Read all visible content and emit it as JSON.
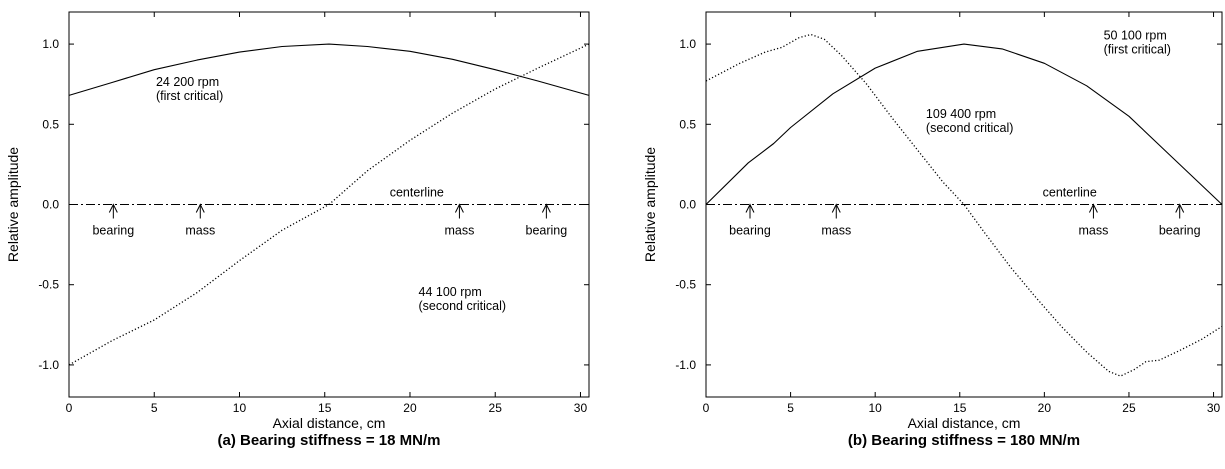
{
  "chart_data": [
    {
      "type": "line",
      "caption": "(a) Bearing stiffness = 18 MN/m",
      "xlabel": "Axial distance, cm",
      "ylabel": "Relative amplitude",
      "xlim": [
        0,
        30.5
      ],
      "ylim": [
        -1.2,
        1.2
      ],
      "xticks": [
        0,
        5,
        10,
        15,
        20,
        25,
        30
      ],
      "yticks": [
        -1.0,
        -0.5,
        0.0,
        0.5,
        1.0
      ],
      "ytick_labels": [
        "-1.0",
        "-0.5",
        "0.0",
        "0.5",
        "1.0"
      ],
      "centerline": {
        "y": 0,
        "label": "centerline",
        "label_x": 20.4
      },
      "markers": [
        {
          "x": 2.6,
          "label": "bearing"
        },
        {
          "x": 7.7,
          "label": "mass"
        },
        {
          "x": 22.9,
          "label": "mass"
        },
        {
          "x": 28.0,
          "label": "bearing"
        }
      ],
      "series": [
        {
          "style": "solid",
          "label_lines": [
            "24 200 rpm",
            "(first critical)"
          ],
          "label_pos": [
            5.1,
            0.74
          ],
          "x": [
            0,
            2.5,
            5,
            7.5,
            10,
            12.5,
            15.25,
            17.5,
            20,
            22.5,
            25,
            27.5,
            30.5
          ],
          "y": [
            0.68,
            0.76,
            0.84,
            0.9,
            0.95,
            0.985,
            1.0,
            0.985,
            0.955,
            0.905,
            0.84,
            0.77,
            0.68
          ]
        },
        {
          "style": "dotted",
          "label_lines": [
            "44 100 rpm",
            "(second critical)"
          ],
          "label_pos": [
            20.5,
            -0.57
          ],
          "x": [
            0,
            2.5,
            5,
            7.5,
            10,
            12.5,
            15.25,
            17.5,
            20,
            22.5,
            25,
            27.5,
            30.5
          ],
          "y": [
            -1.0,
            -0.85,
            -0.72,
            -0.55,
            -0.35,
            -0.16,
            0.0,
            0.21,
            0.4,
            0.57,
            0.72,
            0.85,
            1.0
          ]
        }
      ]
    },
    {
      "type": "line",
      "caption": "(b) Bearing stiffness = 180 MN/m",
      "xlabel": "Axial distance, cm",
      "ylabel": "Relative amplitude",
      "xlim": [
        0,
        30.5
      ],
      "ylim": [
        -1.2,
        1.2
      ],
      "xticks": [
        0,
        5,
        10,
        15,
        20,
        25,
        30
      ],
      "yticks": [
        -1.0,
        -0.5,
        0.0,
        0.5,
        1.0
      ],
      "ytick_labels": [
        "-1.0",
        "-0.5",
        "0.0",
        "0.5",
        "1.0"
      ],
      "centerline": {
        "y": 0,
        "label": "centerline",
        "label_x": 21.5
      },
      "markers": [
        {
          "x": 2.6,
          "label": "bearing"
        },
        {
          "x": 7.7,
          "label": "mass"
        },
        {
          "x": 22.9,
          "label": "mass"
        },
        {
          "x": 28.0,
          "label": "bearing"
        }
      ],
      "series": [
        {
          "style": "solid",
          "label_lines": [
            "50 100 rpm",
            "(first critical)"
          ],
          "label_pos": [
            23.5,
            1.03
          ],
          "x": [
            0,
            2.5,
            4,
            5,
            7.5,
            10,
            12.5,
            15.25,
            17.5,
            20,
            22.5,
            25,
            27.5,
            30.5
          ],
          "y": [
            0.0,
            0.26,
            0.38,
            0.48,
            0.69,
            0.85,
            0.955,
            1.0,
            0.97,
            0.88,
            0.74,
            0.55,
            0.3,
            0.0
          ]
        },
        {
          "style": "dotted",
          "label_lines": [
            "109 400 rpm",
            "(second critical)"
          ],
          "label_pos": [
            13.0,
            0.54
          ],
          "x": [
            0,
            2,
            3.5,
            4.5,
            5.5,
            6.2,
            7,
            8,
            9.5,
            11,
            12.5,
            14,
            15.25,
            16.5,
            18,
            19.5,
            21,
            22.5,
            23.8,
            24.5,
            25.3,
            26,
            26.8,
            28,
            29.3,
            30.5
          ],
          "y": [
            0.77,
            0.88,
            0.95,
            0.98,
            1.04,
            1.06,
            1.03,
            0.93,
            0.75,
            0.54,
            0.34,
            0.14,
            0.0,
            -0.18,
            -0.39,
            -0.58,
            -0.76,
            -0.92,
            -1.04,
            -1.07,
            -1.03,
            -0.98,
            -0.97,
            -0.91,
            -0.84,
            -0.76
          ]
        }
      ]
    }
  ]
}
